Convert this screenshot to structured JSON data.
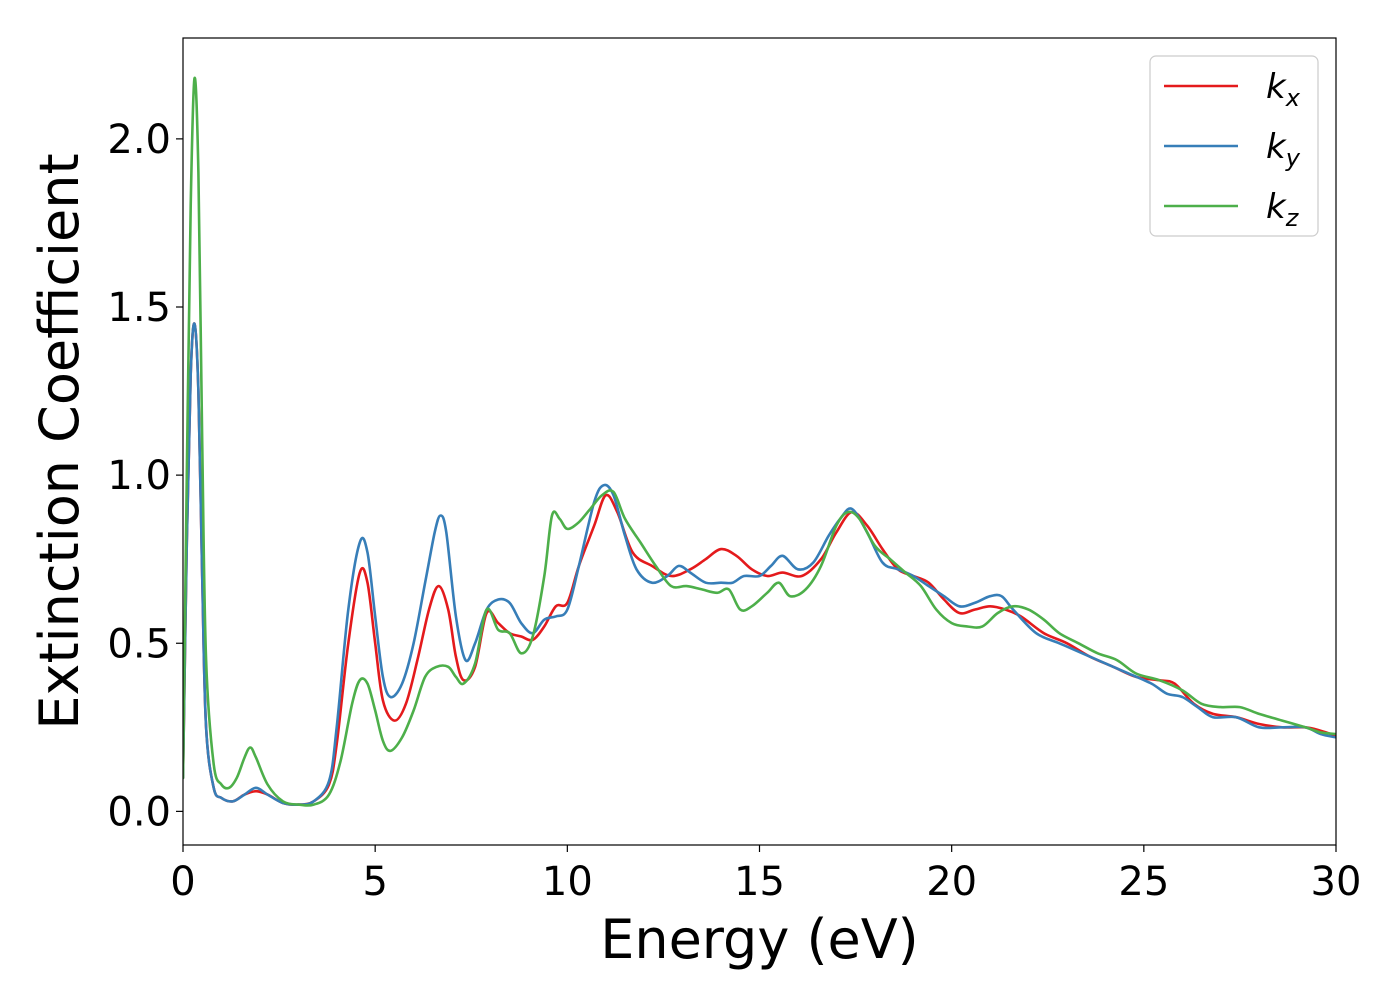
{
  "chart_data": {
    "type": "line",
    "title": "",
    "xlabel": "Energy (eV)",
    "ylabel": "Extinction Coefficient",
    "xlim": [
      0,
      30
    ],
    "ylim": [
      -0.1,
      2.3
    ],
    "xticks": [
      0,
      5,
      10,
      15,
      20,
      25,
      30
    ],
    "xtick_labels": [
      "0",
      "5",
      "10",
      "15",
      "20",
      "25",
      "30"
    ],
    "yticks": [
      0.0,
      0.5,
      1.0,
      1.5,
      2.0
    ],
    "ytick_labels": [
      "0.0",
      "0.5",
      "1.0",
      "1.5",
      "2.0"
    ],
    "grid": false,
    "legend_position": "top-right",
    "series": [
      {
        "name_base": "k",
        "name_sub": "x",
        "color": "#e41a1c",
        "points": [
          [
            0,
            0.1
          ],
          [
            0.1,
            0.8
          ],
          [
            0.2,
            1.3
          ],
          [
            0.3,
            1.45
          ],
          [
            0.4,
            1.25
          ],
          [
            0.5,
            0.7
          ],
          [
            0.6,
            0.25
          ],
          [
            0.8,
            0.07
          ],
          [
            1.0,
            0.04
          ],
          [
            1.3,
            0.03
          ],
          [
            1.6,
            0.05
          ],
          [
            1.9,
            0.06
          ],
          [
            2.2,
            0.05
          ],
          [
            2.6,
            0.025
          ],
          [
            3.0,
            0.02
          ],
          [
            3.4,
            0.03
          ],
          [
            3.8,
            0.08
          ],
          [
            4.0,
            0.2
          ],
          [
            4.3,
            0.5
          ],
          [
            4.6,
            0.71
          ],
          [
            4.8,
            0.68
          ],
          [
            5.0,
            0.5
          ],
          [
            5.2,
            0.33
          ],
          [
            5.5,
            0.27
          ],
          [
            5.8,
            0.32
          ],
          [
            6.1,
            0.45
          ],
          [
            6.4,
            0.6
          ],
          [
            6.65,
            0.67
          ],
          [
            6.9,
            0.6
          ],
          [
            7.1,
            0.46
          ],
          [
            7.3,
            0.39
          ],
          [
            7.6,
            0.43
          ],
          [
            7.9,
            0.59
          ],
          [
            8.2,
            0.56
          ],
          [
            8.5,
            0.53
          ],
          [
            8.8,
            0.52
          ],
          [
            9.1,
            0.51
          ],
          [
            9.4,
            0.55
          ],
          [
            9.7,
            0.61
          ],
          [
            10.0,
            0.62
          ],
          [
            10.3,
            0.73
          ],
          [
            10.7,
            0.85
          ],
          [
            11.0,
            0.94
          ],
          [
            11.3,
            0.89
          ],
          [
            11.7,
            0.77
          ],
          [
            12.2,
            0.73
          ],
          [
            12.7,
            0.7
          ],
          [
            13.2,
            0.72
          ],
          [
            13.6,
            0.75
          ],
          [
            14.0,
            0.78
          ],
          [
            14.4,
            0.76
          ],
          [
            14.8,
            0.72
          ],
          [
            15.2,
            0.7
          ],
          [
            15.6,
            0.71
          ],
          [
            16.1,
            0.7
          ],
          [
            16.6,
            0.75
          ],
          [
            17.0,
            0.83
          ],
          [
            17.4,
            0.89
          ],
          [
            17.8,
            0.85
          ],
          [
            18.2,
            0.78
          ],
          [
            18.6,
            0.72
          ],
          [
            19.0,
            0.7
          ],
          [
            19.4,
            0.68
          ],
          [
            19.8,
            0.63
          ],
          [
            20.2,
            0.59
          ],
          [
            20.6,
            0.6
          ],
          [
            21.0,
            0.61
          ],
          [
            21.4,
            0.6
          ],
          [
            21.8,
            0.58
          ],
          [
            22.4,
            0.53
          ],
          [
            23.0,
            0.5
          ],
          [
            23.6,
            0.46
          ],
          [
            24.2,
            0.43
          ],
          [
            24.8,
            0.4
          ],
          [
            25.4,
            0.39
          ],
          [
            25.8,
            0.38
          ],
          [
            26.3,
            0.32
          ],
          [
            26.8,
            0.29
          ],
          [
            27.4,
            0.28
          ],
          [
            28.0,
            0.26
          ],
          [
            28.6,
            0.25
          ],
          [
            29.2,
            0.25
          ],
          [
            29.6,
            0.24
          ],
          [
            30,
            0.225
          ]
        ]
      },
      {
        "name_base": "k",
        "name_sub": "y",
        "color": "#377eb8",
        "points": [
          [
            0,
            0.1
          ],
          [
            0.1,
            0.8
          ],
          [
            0.2,
            1.3
          ],
          [
            0.3,
            1.45
          ],
          [
            0.4,
            1.25
          ],
          [
            0.5,
            0.7
          ],
          [
            0.6,
            0.25
          ],
          [
            0.8,
            0.07
          ],
          [
            1.0,
            0.04
          ],
          [
            1.3,
            0.03
          ],
          [
            1.6,
            0.05
          ],
          [
            1.9,
            0.07
          ],
          [
            2.2,
            0.05
          ],
          [
            2.6,
            0.025
          ],
          [
            3.0,
            0.02
          ],
          [
            3.4,
            0.03
          ],
          [
            3.8,
            0.09
          ],
          [
            4.0,
            0.25
          ],
          [
            4.3,
            0.6
          ],
          [
            4.6,
            0.8
          ],
          [
            4.8,
            0.77
          ],
          [
            5.0,
            0.58
          ],
          [
            5.2,
            0.4
          ],
          [
            5.4,
            0.34
          ],
          [
            5.7,
            0.38
          ],
          [
            6.0,
            0.5
          ],
          [
            6.3,
            0.68
          ],
          [
            6.55,
            0.83
          ],
          [
            6.7,
            0.88
          ],
          [
            6.85,
            0.83
          ],
          [
            7.1,
            0.58
          ],
          [
            7.35,
            0.45
          ],
          [
            7.6,
            0.5
          ],
          [
            7.9,
            0.6
          ],
          [
            8.2,
            0.63
          ],
          [
            8.5,
            0.62
          ],
          [
            8.8,
            0.56
          ],
          [
            9.1,
            0.53
          ],
          [
            9.4,
            0.57
          ],
          [
            9.7,
            0.58
          ],
          [
            10.0,
            0.6
          ],
          [
            10.3,
            0.73
          ],
          [
            10.7,
            0.92
          ],
          [
            10.95,
            0.97
          ],
          [
            11.2,
            0.94
          ],
          [
            11.5,
            0.82
          ],
          [
            11.8,
            0.72
          ],
          [
            12.2,
            0.68
          ],
          [
            12.6,
            0.7
          ],
          [
            12.9,
            0.73
          ],
          [
            13.2,
            0.71
          ],
          [
            13.6,
            0.68
          ],
          [
            14.0,
            0.68
          ],
          [
            14.3,
            0.68
          ],
          [
            14.6,
            0.7
          ],
          [
            15.0,
            0.7
          ],
          [
            15.3,
            0.73
          ],
          [
            15.6,
            0.76
          ],
          [
            16.0,
            0.72
          ],
          [
            16.4,
            0.74
          ],
          [
            16.8,
            0.82
          ],
          [
            17.1,
            0.87
          ],
          [
            17.4,
            0.9
          ],
          [
            17.8,
            0.83
          ],
          [
            18.2,
            0.74
          ],
          [
            18.6,
            0.72
          ],
          [
            19.0,
            0.7
          ],
          [
            19.4,
            0.67
          ],
          [
            19.8,
            0.64
          ],
          [
            20.2,
            0.61
          ],
          [
            20.6,
            0.62
          ],
          [
            21.0,
            0.64
          ],
          [
            21.3,
            0.64
          ],
          [
            21.6,
            0.6
          ],
          [
            22.2,
            0.53
          ],
          [
            22.8,
            0.5
          ],
          [
            23.4,
            0.47
          ],
          [
            24.0,
            0.44
          ],
          [
            24.6,
            0.41
          ],
          [
            25.2,
            0.38
          ],
          [
            25.6,
            0.35
          ],
          [
            26.0,
            0.34
          ],
          [
            26.4,
            0.31
          ],
          [
            26.8,
            0.28
          ],
          [
            27.4,
            0.28
          ],
          [
            28.0,
            0.25
          ],
          [
            28.6,
            0.25
          ],
          [
            29.2,
            0.25
          ],
          [
            29.6,
            0.23
          ],
          [
            30,
            0.22
          ]
        ]
      },
      {
        "name_base": "k",
        "name_sub": "z",
        "color": "#4daf4a",
        "points": [
          [
            0,
            0.1
          ],
          [
            0.1,
            1.0
          ],
          [
            0.2,
            1.8
          ],
          [
            0.3,
            2.18
          ],
          [
            0.4,
            1.9
          ],
          [
            0.5,
            1.1
          ],
          [
            0.6,
            0.45
          ],
          [
            0.8,
            0.14
          ],
          [
            1.0,
            0.08
          ],
          [
            1.2,
            0.07
          ],
          [
            1.4,
            0.1
          ],
          [
            1.6,
            0.16
          ],
          [
            1.75,
            0.19
          ],
          [
            1.9,
            0.16
          ],
          [
            2.2,
            0.08
          ],
          [
            2.6,
            0.03
          ],
          [
            3.0,
            0.02
          ],
          [
            3.4,
            0.02
          ],
          [
            3.8,
            0.05
          ],
          [
            4.1,
            0.15
          ],
          [
            4.4,
            0.32
          ],
          [
            4.6,
            0.39
          ],
          [
            4.8,
            0.38
          ],
          [
            5.0,
            0.3
          ],
          [
            5.2,
            0.21
          ],
          [
            5.4,
            0.18
          ],
          [
            5.7,
            0.22
          ],
          [
            6.0,
            0.3
          ],
          [
            6.3,
            0.4
          ],
          [
            6.6,
            0.43
          ],
          [
            6.9,
            0.43
          ],
          [
            7.1,
            0.4
          ],
          [
            7.3,
            0.38
          ],
          [
            7.6,
            0.44
          ],
          [
            7.9,
            0.6
          ],
          [
            8.2,
            0.54
          ],
          [
            8.5,
            0.53
          ],
          [
            8.8,
            0.47
          ],
          [
            9.1,
            0.52
          ],
          [
            9.4,
            0.7
          ],
          [
            9.6,
            0.88
          ],
          [
            9.8,
            0.87
          ],
          [
            10.0,
            0.84
          ],
          [
            10.3,
            0.86
          ],
          [
            10.6,
            0.9
          ],
          [
            10.9,
            0.94
          ],
          [
            11.2,
            0.95
          ],
          [
            11.5,
            0.87
          ],
          [
            11.9,
            0.8
          ],
          [
            12.3,
            0.73
          ],
          [
            12.7,
            0.67
          ],
          [
            13.1,
            0.67
          ],
          [
            13.5,
            0.66
          ],
          [
            13.9,
            0.65
          ],
          [
            14.2,
            0.66
          ],
          [
            14.5,
            0.6
          ],
          [
            14.8,
            0.61
          ],
          [
            15.2,
            0.65
          ],
          [
            15.5,
            0.68
          ],
          [
            15.8,
            0.64
          ],
          [
            16.2,
            0.66
          ],
          [
            16.6,
            0.73
          ],
          [
            17.0,
            0.85
          ],
          [
            17.3,
            0.89
          ],
          [
            17.6,
            0.87
          ],
          [
            18.0,
            0.79
          ],
          [
            18.4,
            0.75
          ],
          [
            18.8,
            0.71
          ],
          [
            19.2,
            0.67
          ],
          [
            19.6,
            0.6
          ],
          [
            20.0,
            0.56
          ],
          [
            20.4,
            0.55
          ],
          [
            20.8,
            0.55
          ],
          [
            21.2,
            0.59
          ],
          [
            21.6,
            0.61
          ],
          [
            22.0,
            0.6
          ],
          [
            22.4,
            0.57
          ],
          [
            22.8,
            0.53
          ],
          [
            23.3,
            0.5
          ],
          [
            23.8,
            0.47
          ],
          [
            24.3,
            0.45
          ],
          [
            24.8,
            0.41
          ],
          [
            25.4,
            0.39
          ],
          [
            26.0,
            0.36
          ],
          [
            26.5,
            0.32
          ],
          [
            27.0,
            0.31
          ],
          [
            27.5,
            0.31
          ],
          [
            28.0,
            0.29
          ],
          [
            28.6,
            0.27
          ],
          [
            29.2,
            0.25
          ],
          [
            29.6,
            0.235
          ],
          [
            30,
            0.23
          ]
        ]
      }
    ]
  }
}
